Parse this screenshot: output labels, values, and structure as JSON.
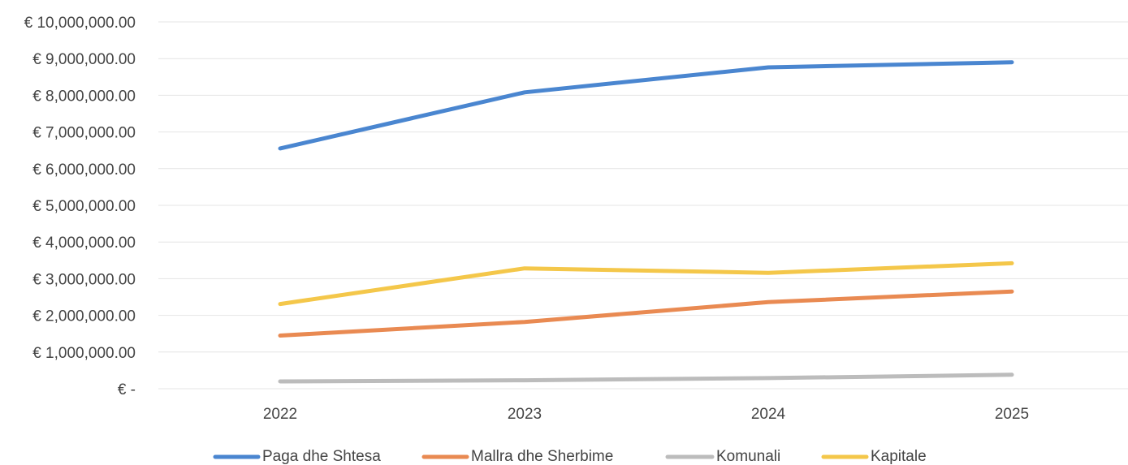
{
  "chart_data": {
    "type": "line",
    "title": "",
    "xlabel": "",
    "ylabel": "",
    "categories": [
      "2022",
      "2023",
      "2024",
      "2025"
    ],
    "y_ticks": [
      {
        "value": 0,
        "label": "€ -"
      },
      {
        "value": 1000000,
        "label": "€ 1,000,000.00"
      },
      {
        "value": 2000000,
        "label": "€ 2,000,000.00"
      },
      {
        "value": 3000000,
        "label": "€ 3,000,000.00"
      },
      {
        "value": 4000000,
        "label": "€ 4,000,000.00"
      },
      {
        "value": 5000000,
        "label": "€ 5,000,000.00"
      },
      {
        "value": 6000000,
        "label": "€ 6,000,000.00"
      },
      {
        "value": 7000000,
        "label": "€ 7,000,000.00"
      },
      {
        "value": 8000000,
        "label": "€ 8,000,000.00"
      },
      {
        "value": 9000000,
        "label": "€ 9,000,000.00"
      },
      {
        "value": 10000000,
        "label": "€ 10,000,000.00"
      }
    ],
    "ylim": [
      0,
      10000000
    ],
    "grid": true,
    "legend": "bottom",
    "series": [
      {
        "name": "Paga dhe Shtesa",
        "color": "#4a86d0",
        "values": [
          6550000,
          8080000,
          8760000,
          8900000
        ]
      },
      {
        "name": "Mallra dhe Sherbime",
        "color": "#e98a52",
        "values": [
          1450000,
          1820000,
          2360000,
          2650000
        ]
      },
      {
        "name": "Komunali",
        "color": "#bcbcbc",
        "values": [
          200000,
          230000,
          290000,
          380000
        ]
      },
      {
        "name": "Kapitale",
        "color": "#f4c74a",
        "values": [
          2310000,
          3280000,
          3160000,
          3420000
        ]
      }
    ]
  }
}
